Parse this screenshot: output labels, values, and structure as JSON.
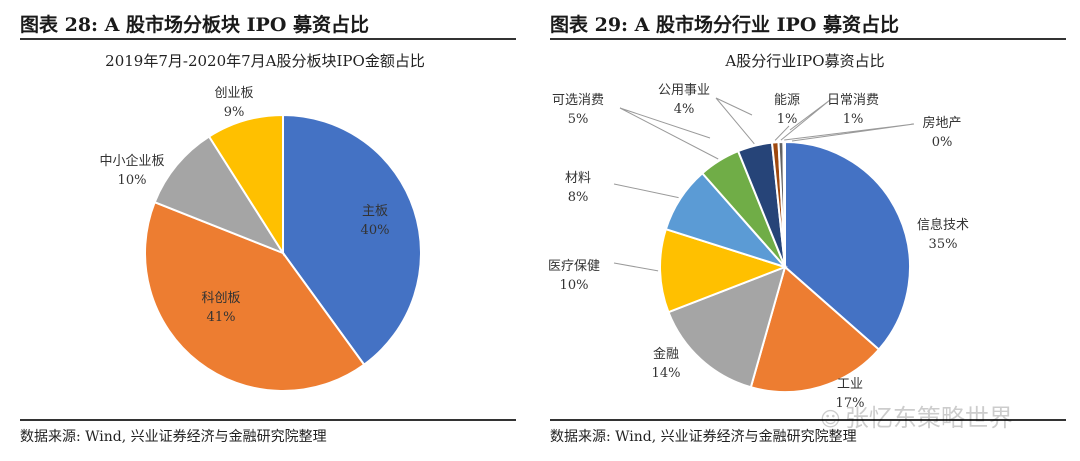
{
  "figures": [
    {
      "fig_title": "图表 28:  A 股市场分板块 IPO 募资占比",
      "source": "数据来源:  Wind, 兴业证券经济与金融研究院整理"
    },
    {
      "fig_title": "图表 29:  A 股市场分行业 IPO 募资占比",
      "source": "数据来源:  Wind, 兴业证券经济与金融研究院整理"
    }
  ],
  "watermark": {
    "text": "张忆东策略世界",
    "icon": "wechat-icon"
  },
  "chart_data": [
    {
      "type": "pie",
      "title": "2019年7月-2020年7月A股分板块IPO金额占比",
      "start": "12 o'clock",
      "direction": "clockwise",
      "slices": [
        {
          "label": "主板",
          "pct_label": "40%",
          "value": 40,
          "color": "#4472C4",
          "label_inside": true
        },
        {
          "label": "科创板",
          "pct_label": "41%",
          "value": 41,
          "color": "#ED7D31",
          "label_inside": true
        },
        {
          "label": "中小企业板",
          "pct_label": "10%",
          "value": 10,
          "color": "#A5A5A5",
          "label_inside": false
        },
        {
          "label": "创业板",
          "pct_label": "9%",
          "value": 9,
          "color": "#FFC000",
          "label_inside": false
        }
      ]
    },
    {
      "type": "pie",
      "title": "A股分行业IPO募资占比",
      "start": "12 o'clock",
      "direction": "clockwise",
      "slices": [
        {
          "label": "信息技术",
          "pct_label": "35%",
          "value": 35.2,
          "color": "#4472C4",
          "label_inside": false
        },
        {
          "label": "工业",
          "pct_label": "17%",
          "value": 17.3,
          "color": "#ED7D31",
          "label_inside": false
        },
        {
          "label": "金融",
          "pct_label": "14%",
          "value": 14.2,
          "color": "#A5A5A5",
          "label_inside": false
        },
        {
          "label": "医疗保健",
          "pct_label": "10%",
          "value": 10.4,
          "color": "#FFC000",
          "label_inside": false
        },
        {
          "label": "材料",
          "pct_label": "8%",
          "value": 8.3,
          "color": "#5B9BD5",
          "label_inside": false
        },
        {
          "label": "可选消费",
          "pct_label": "5%",
          "value": 5.2,
          "color": "#70AD47",
          "label_inside": false
        },
        {
          "label": "公用事业",
          "pct_label": "4%",
          "value": 4.3,
          "color": "#264478",
          "label_inside": false
        },
        {
          "label": "能源",
          "pct_label": "1%",
          "value": 0.8,
          "color": "#9E480E",
          "label_inside": false
        },
        {
          "label": "日常消费",
          "pct_label": "1%",
          "value": 0.6,
          "color": "#636363",
          "label_inside": false
        },
        {
          "label": "房地产",
          "pct_label": "0%",
          "value": 0.2,
          "color": "#997300",
          "label_inside": false
        }
      ]
    }
  ]
}
